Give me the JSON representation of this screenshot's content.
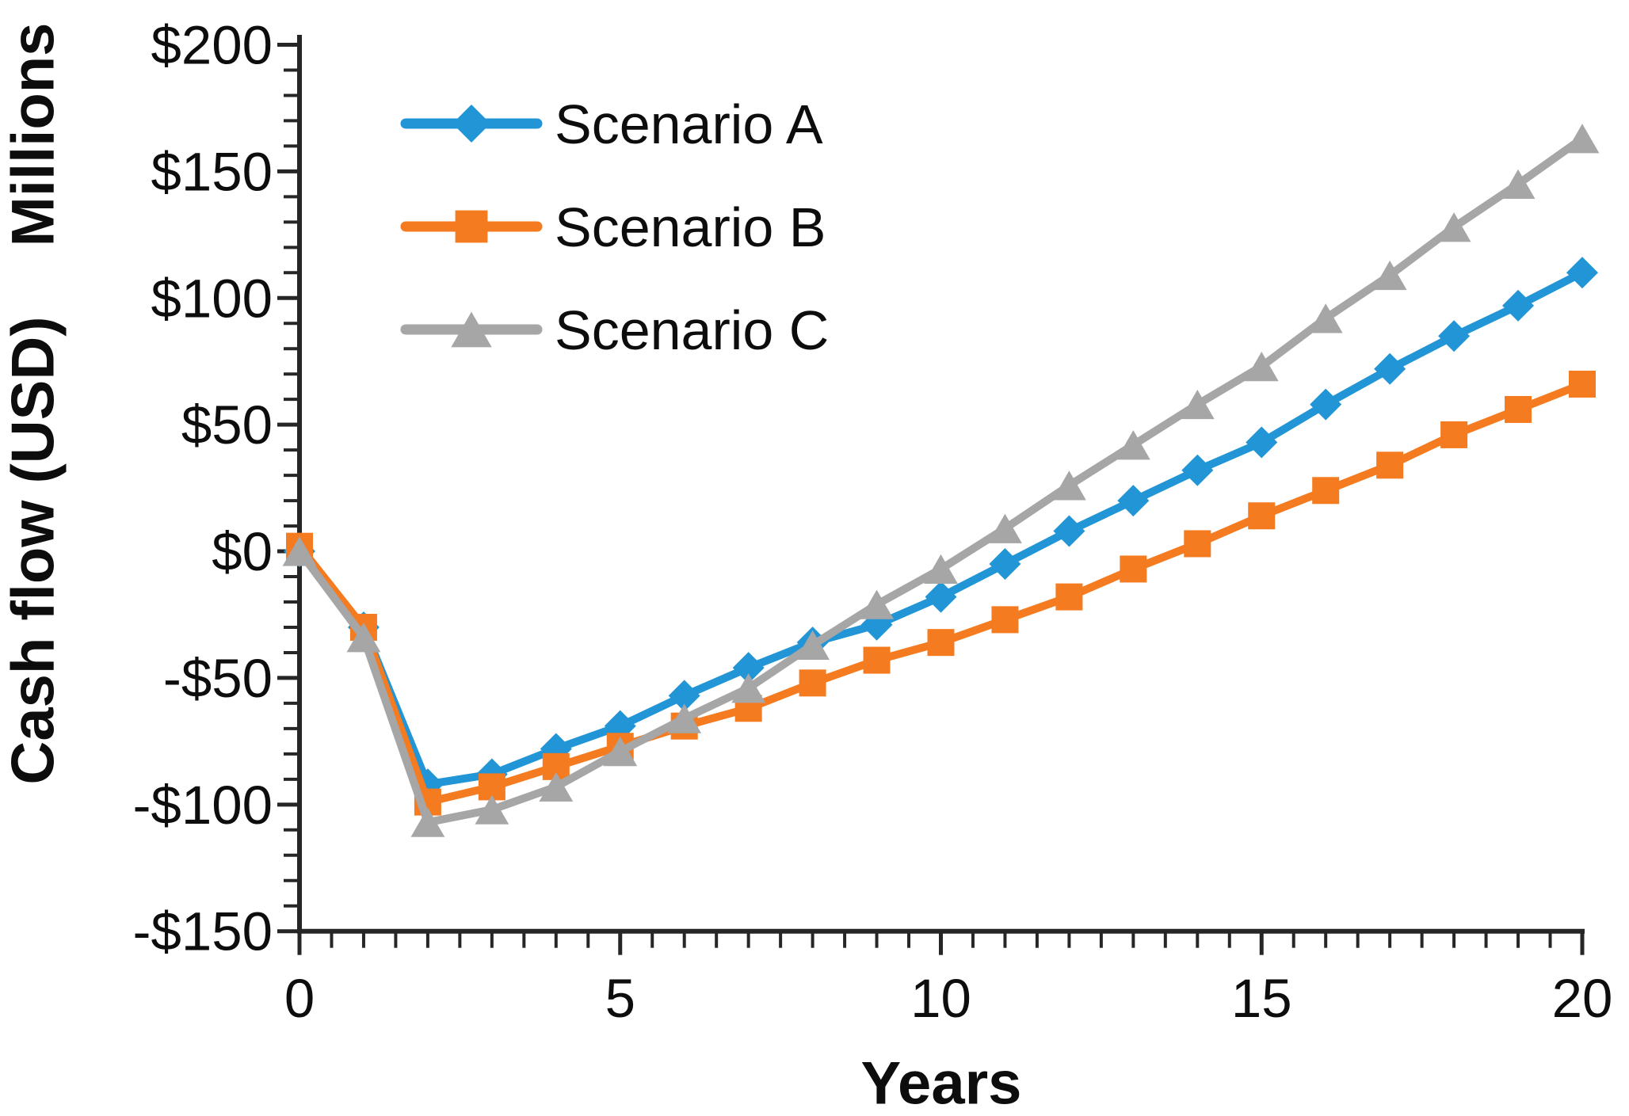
{
  "figure": {
    "x_axis_title": "Years",
    "y_axis_title": "Cash flow (USD)",
    "y_axis_unit_title": "Millions"
  },
  "chart_data": {
    "type": "line",
    "title": "",
    "xlabel": "Years",
    "ylabel": "Cash flow (USD)",
    "ylabel_units": "Millions",
    "xlim": [
      0,
      20
    ],
    "ylim": [
      -150,
      200
    ],
    "x_major_step": 5,
    "x_minor_step": 0.5,
    "y_major_step": 50,
    "y_minor_step": 10,
    "grid": false,
    "legend_position": "top-left-inside",
    "x": [
      0,
      1,
      2,
      3,
      4,
      5,
      6,
      7,
      8,
      9,
      10,
      11,
      12,
      13,
      14,
      15,
      16,
      17,
      18,
      19,
      20
    ],
    "x_ticks": [
      {
        "value": 0,
        "label": "0"
      },
      {
        "value": 5,
        "label": "5"
      },
      {
        "value": 10,
        "label": "10"
      },
      {
        "value": 15,
        "label": "15"
      },
      {
        "value": 20,
        "label": "20"
      }
    ],
    "y_ticks": [
      {
        "value": 200,
        "label": "$200"
      },
      {
        "value": 150,
        "label": "$150"
      },
      {
        "value": 100,
        "label": "$100"
      },
      {
        "value": 50,
        "label": "$50"
      },
      {
        "value": 0,
        "label": "$0"
      },
      {
        "value": -50,
        "label": "-$50"
      },
      {
        "value": -100,
        "label": "-$100"
      },
      {
        "value": -150,
        "label": "-$150"
      }
    ],
    "series": [
      {
        "name": "Scenario A",
        "marker": "diamond",
        "color": "#2295D6",
        "values": [
          0,
          -30,
          -92,
          -88,
          -78,
          -69,
          -57,
          -46,
          -36,
          -29,
          -18,
          -5,
          8,
          20,
          32,
          43,
          58,
          72,
          85,
          97,
          110
        ]
      },
      {
        "name": "Scenario B",
        "marker": "square",
        "color": "#F57B20",
        "values": [
          2,
          -30,
          -99,
          -93,
          -85,
          -77,
          -69,
          -62,
          -52,
          -43,
          -36,
          -27,
          -18,
          -7,
          3,
          14,
          24,
          34,
          46,
          56,
          66
        ]
      },
      {
        "name": "Scenario C",
        "marker": "triangle",
        "color": "#A6A6A6",
        "values": [
          0,
          -34,
          -107,
          -102,
          -93,
          -79,
          -66,
          -54,
          -37,
          -21,
          -7,
          9,
          26,
          42,
          58,
          73,
          92,
          109,
          128,
          145,
          163
        ]
      }
    ],
    "units": "millions USD"
  },
  "colors": {
    "axis": "#262626",
    "text": "#0d0d0d",
    "background": "#ffffff",
    "series_a": "#2295D6",
    "series_b": "#F57B20",
    "series_c": "#A6A6A6"
  }
}
